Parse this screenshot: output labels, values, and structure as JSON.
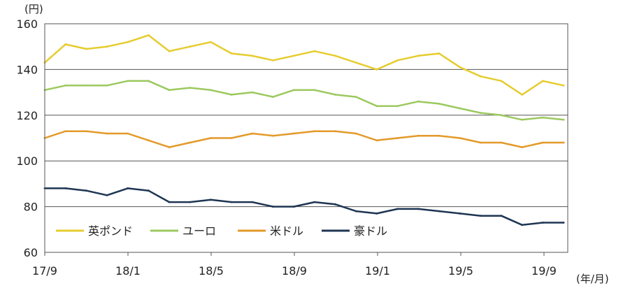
{
  "chart_data": {
    "type": "line",
    "y_unit_label": "(円)",
    "x_unit_label": "(年/月)",
    "ylim": [
      60,
      160
    ],
    "y_ticks": [
      60,
      80,
      100,
      120,
      140,
      160
    ],
    "x_tick_labels": [
      "17/9",
      "18/1",
      "18/5",
      "18/9",
      "19/1",
      "19/5",
      "19/9"
    ],
    "grid": true,
    "legend_position": "bottom-left",
    "x": [
      "2017-09",
      "2017-10",
      "2017-11",
      "2017-12",
      "2018-01",
      "2018-02",
      "2018-03",
      "2018-04",
      "2018-05",
      "2018-06",
      "2018-07",
      "2018-08",
      "2018-09",
      "2018-10",
      "2018-11",
      "2018-12",
      "2019-01",
      "2019-02",
      "2019-03",
      "2019-04",
      "2019-05",
      "2019-06",
      "2019-07",
      "2019-08",
      "2019-09",
      "2019-10"
    ],
    "series": [
      {
        "name": "英ポンド",
        "color": "#e6cc2e",
        "values": [
          143,
          151,
          149,
          150,
          152,
          155,
          148,
          150,
          152,
          147,
          146,
          144,
          146,
          148,
          146,
          143,
          140,
          144,
          146,
          147,
          141,
          137,
          135,
          129,
          135,
          133
        ]
      },
      {
        "name": "ユーロ",
        "color": "#9cc95f",
        "values": [
          131,
          133,
          133,
          133,
          135,
          135,
          131,
          132,
          131,
          129,
          130,
          128,
          131,
          131,
          129,
          128,
          124,
          124,
          126,
          125,
          123,
          121,
          120,
          118,
          119,
          118
        ]
      },
      {
        "name": "米ドル",
        "color": "#e39a2a",
        "values": [
          110,
          113,
          113,
          112,
          112,
          109,
          106,
          108,
          110,
          110,
          112,
          111,
          112,
          113,
          113,
          112,
          109,
          110,
          111,
          111,
          110,
          108,
          108,
          106,
          108,
          108
        ]
      },
      {
        "name": "豪ドル",
        "color": "#1e3553",
        "values": [
          88,
          88,
          87,
          85,
          88,
          87,
          82,
          82,
          83,
          82,
          82,
          80,
          80,
          82,
          81,
          78,
          77,
          79,
          79,
          78,
          77,
          76,
          76,
          72,
          73,
          73
        ]
      }
    ]
  }
}
